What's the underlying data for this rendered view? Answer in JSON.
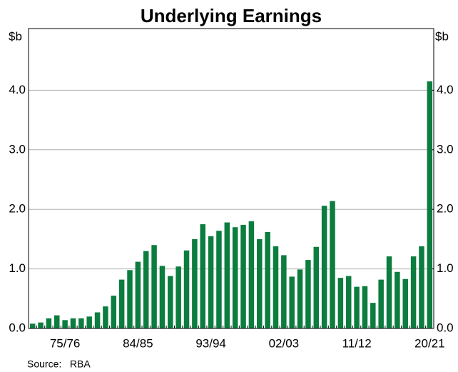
{
  "chart_data": {
    "type": "bar",
    "title": "Underlying Earnings",
    "ylabel": "$b",
    "y2label": "$b",
    "source": "Source:   RBA",
    "categories": [
      null,
      null,
      null,
      null,
      "75/76",
      null,
      null,
      null,
      null,
      null,
      null,
      null,
      null,
      "84/85",
      null,
      null,
      null,
      null,
      null,
      null,
      null,
      null,
      "93/94",
      null,
      null,
      null,
      null,
      null,
      null,
      null,
      null,
      "02/03",
      null,
      null,
      null,
      null,
      null,
      null,
      null,
      null,
      "11/12",
      null,
      null,
      null,
      null,
      null,
      null,
      null,
      null,
      "20/21"
    ],
    "values": [
      0.08,
      0.1,
      0.17,
      0.22,
      0.14,
      0.17,
      0.17,
      0.2,
      0.27,
      0.37,
      0.55,
      0.82,
      0.98,
      1.12,
      1.3,
      1.4,
      1.05,
      0.88,
      1.04,
      1.31,
      1.5,
      1.75,
      1.55,
      1.64,
      1.78,
      1.7,
      1.74,
      1.8,
      1.5,
      1.62,
      1.38,
      1.23,
      0.87,
      0.99,
      1.15,
      1.37,
      2.06,
      2.14,
      0.85,
      0.88,
      0.7,
      0.71,
      0.43,
      0.82,
      1.21,
      0.95,
      0.83,
      1.21,
      1.38,
      4.15
    ],
    "color": "#0b7d3e",
    "ylim": [
      0,
      5
    ],
    "yticks": [
      {
        "value": 0,
        "label": "0.0"
      },
      {
        "value": 1,
        "label": "1.0"
      },
      {
        "value": 2,
        "label": "2.0"
      },
      {
        "value": 3,
        "label": "3.0"
      },
      {
        "value": 4,
        "label": "4.0"
      }
    ],
    "y2lim": [
      0,
      5
    ],
    "y2ticks": [
      {
        "value": 0,
        "label": "0.0"
      },
      {
        "value": 1,
        "label": "1.0"
      },
      {
        "value": 2,
        "label": "2.0"
      },
      {
        "value": 3,
        "label": "3.0"
      },
      {
        "value": 4,
        "label": "4.0"
      }
    ],
    "grid": true
  }
}
